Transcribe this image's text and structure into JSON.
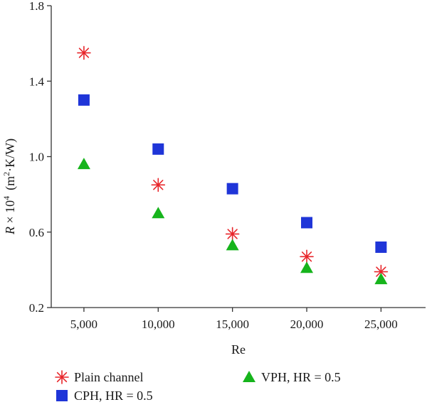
{
  "chart_data": {
    "type": "scatter",
    "xlabel": "Re",
    "ylabel": "R × 10^4 (m^2·K/W)",
    "ylabel_parts": {
      "var": "R",
      "times": " × 10",
      "exp": "4",
      "unit_open": "(m",
      "unit_exp": "2",
      "unit_close": "·K/W)"
    },
    "x": [
      5000,
      10000,
      15000,
      20000,
      25000
    ],
    "xticks": [
      "5,000",
      "10,000",
      "15,000",
      "20,000",
      "25,000"
    ],
    "xlim": [
      2800,
      28000
    ],
    "yticks": [
      "0.2",
      "0.6",
      "1.0",
      "1.4",
      "1.8"
    ],
    "ylim": [
      0.2,
      1.8
    ],
    "grid": false,
    "legend_position": "bottom",
    "series": [
      {
        "name": "Plain channel",
        "marker": "asterisk",
        "color": "#e8262b",
        "values": [
          1.55,
          0.85,
          0.59,
          0.47,
          0.39
        ]
      },
      {
        "name": "CPH, HR = 0.5",
        "marker": "square",
        "color": "#1f35d8",
        "values": [
          1.3,
          1.04,
          0.83,
          0.65,
          0.52
        ]
      },
      {
        "name": "VPH, HR = 0.5",
        "marker": "triangle",
        "color": "#16b41c",
        "values": [
          0.96,
          0.7,
          0.53,
          0.41,
          0.35
        ]
      }
    ]
  }
}
